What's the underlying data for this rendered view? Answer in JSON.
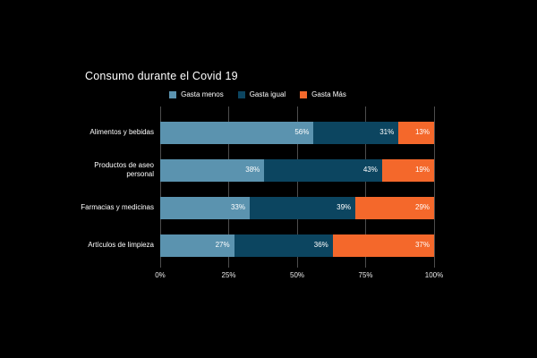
{
  "colors": {
    "background": "#000000",
    "grid": "#4d4d4d",
    "text": "#ffffff",
    "axis_text": "#e9e9e9"
  },
  "chart_data": {
    "type": "bar",
    "orientation": "horizontal",
    "stacked": true,
    "title": "Consumo durante el Covid 19",
    "categories": [
      "Alimentos y bebidas",
      "Productos de aseo personal",
      "Farmacias y medicinas",
      "Artículos de limpieza"
    ],
    "series": [
      {
        "name": "Gasta menos",
        "color": "#5b93af",
        "values": [
          56,
          38,
          33,
          27
        ]
      },
      {
        "name": "Gasta igual",
        "color": "#0c4560",
        "values": [
          31,
          43,
          39,
          36
        ]
      },
      {
        "name": "Gasta Más",
        "color": "#f4682b",
        "values": [
          13,
          19,
          29,
          37
        ]
      }
    ],
    "value_suffix": "%",
    "x_ticks": [
      "0%",
      "25%",
      "50%",
      "75%",
      "100%"
    ],
    "xlim": [
      0,
      100
    ],
    "legend_position": "top",
    "grid": true
  }
}
